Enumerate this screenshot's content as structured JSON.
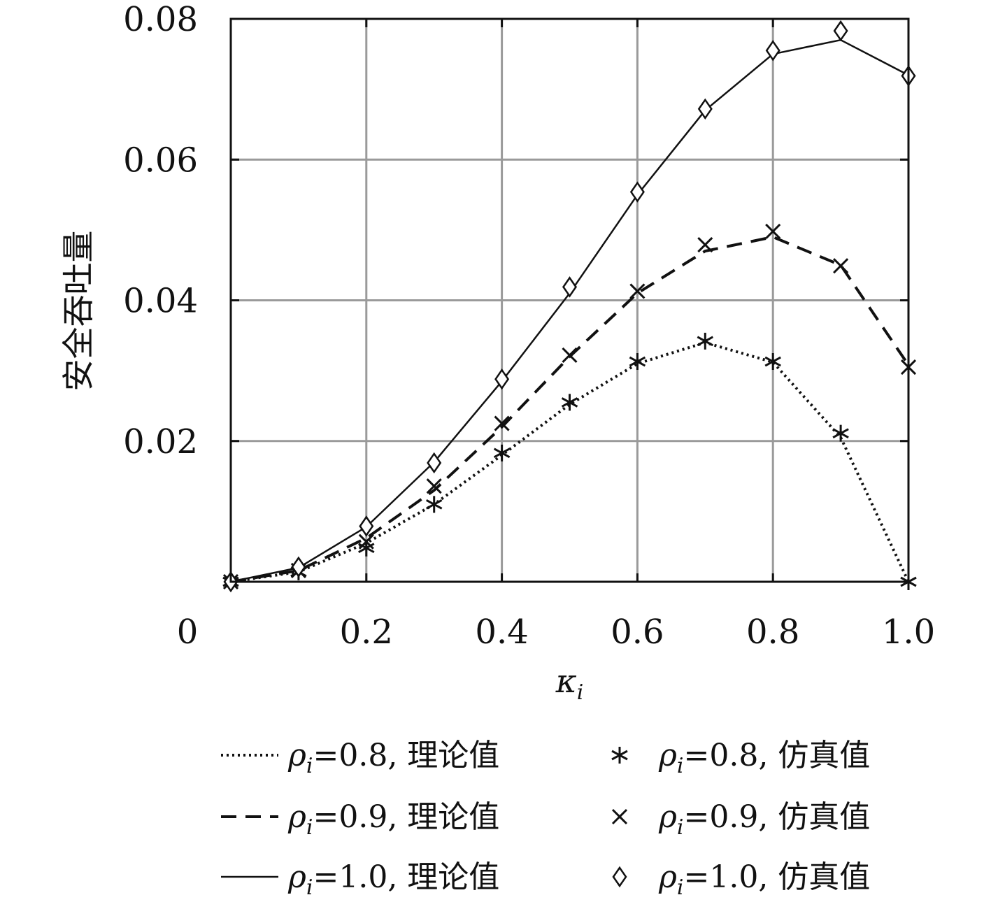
{
  "chart_data": {
    "type": "line",
    "xlabel": "κ",
    "xlabel_sub": "i",
    "ylabel": "安全吞吐量",
    "xlim": [
      0,
      1.0
    ],
    "ylim": [
      0,
      0.08
    ],
    "xticks": [
      0.2,
      0.4,
      0.6,
      0.8,
      1.0
    ],
    "xtick_labels": [
      "0.2",
      "0.4",
      "0.6",
      "0.8",
      "1.0"
    ],
    "yticks": [
      0.02,
      0.04,
      0.06,
      0.08
    ],
    "ytick_labels": [
      "0.02",
      "0.04",
      "0.06",
      "0.08"
    ],
    "origin_label": "0",
    "grid": true,
    "legend_position": "bottom",
    "x": [
      0.0,
      0.1,
      0.2,
      0.3,
      0.4,
      0.5,
      0.6,
      0.7,
      0.8,
      0.9,
      1.0
    ],
    "series": [
      {
        "name": "ρi=0.8, 理论值",
        "legend_prefix": "ρ",
        "legend_sub": "i",
        "legend_suffix": "=0.8, 理论值",
        "kind": "theory",
        "line_style": "dotted",
        "values": [
          0.0,
          0.0014,
          0.0055,
          0.011,
          0.018,
          0.0252,
          0.031,
          0.034,
          0.0312,
          0.0205,
          0.0
        ]
      },
      {
        "name": "ρi=0.9, 理论值",
        "legend_prefix": "ρ",
        "legend_sub": "i",
        "legend_suffix": "=0.9, 理论值",
        "kind": "theory",
        "line_style": "dashed",
        "values": [
          0.0,
          0.0016,
          0.0062,
          0.013,
          0.022,
          0.032,
          0.041,
          0.047,
          0.049,
          0.045,
          0.0308
        ]
      },
      {
        "name": "ρi=1.0, 理论值",
        "legend_prefix": "ρ",
        "legend_sub": "i",
        "legend_suffix": "=1.0, 理论值",
        "kind": "theory",
        "line_style": "solid",
        "values": [
          0.0,
          0.002,
          0.0078,
          0.017,
          0.0285,
          0.041,
          0.055,
          0.067,
          0.075,
          0.077,
          0.072
        ]
      },
      {
        "name": "ρi=0.8, 仿真值",
        "legend_prefix": "ρ",
        "legend_sub": "i",
        "legend_suffix": "=0.8, 仿真值",
        "kind": "simulation",
        "marker": "asterisk",
        "values": [
          0.0,
          0.0014,
          0.0048,
          0.011,
          0.0183,
          0.0255,
          0.0313,
          0.0342,
          0.0313,
          0.0211,
          0.0
        ]
      },
      {
        "name": "ρi=0.9, 仿真值",
        "legend_prefix": "ρ",
        "legend_sub": "i",
        "legend_suffix": "=0.9, 仿真值",
        "kind": "simulation",
        "marker": "x",
        "values": [
          0.0,
          0.0016,
          0.0057,
          0.0136,
          0.0225,
          0.0322,
          0.0413,
          0.0479,
          0.0498,
          0.0449,
          0.0305
        ]
      },
      {
        "name": "ρi=1.0, 仿真值",
        "legend_prefix": "ρ",
        "legend_sub": "i",
        "legend_suffix": "=1.0, 仿真值",
        "kind": "simulation",
        "marker": "diamond",
        "values": [
          0.0,
          0.0021,
          0.0079,
          0.0169,
          0.0288,
          0.0419,
          0.0554,
          0.0672,
          0.0755,
          0.0783,
          0.0719
        ]
      }
    ]
  }
}
